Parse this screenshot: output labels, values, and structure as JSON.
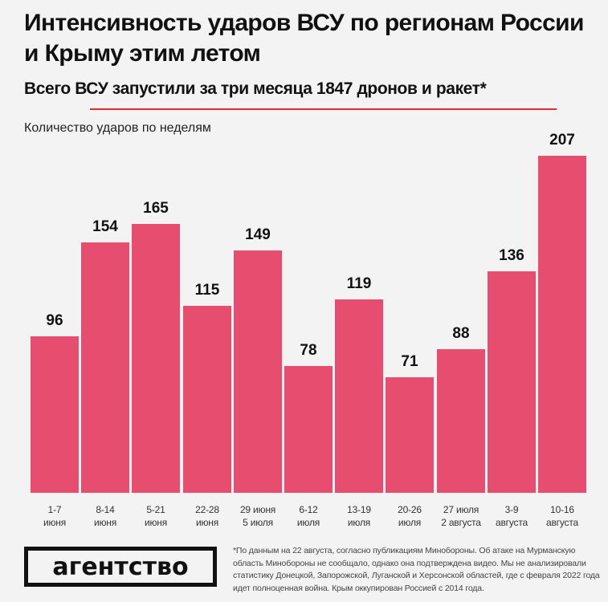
{
  "header": {
    "title": "Интенсивность ударов ВСУ по регионам России и Крыму этим летом",
    "subtitle": "Всего ВСУ запустили за три месяца 1847 дронов и ракет*",
    "accent_color": "#e8262e"
  },
  "chart_data": {
    "type": "bar",
    "title": "Интенсивность ударов ВСУ по регионам России и Крыму этим летом",
    "subtitle": "Всего ВСУ запустили за три месяца 1847 дронов и ракет*",
    "xlabel": "",
    "ylabel": "Количество ударов по неделям",
    "categories": [
      "1-7 июня",
      "8-14 июня",
      "5-21 июня",
      "22-28 июня",
      "29 июня 5 июля",
      "6-12 июля",
      "13-19 июля",
      "20-26 июля",
      "27 июля 2 августа",
      "3-9 августа",
      "10-16 августа"
    ],
    "category_lines": [
      [
        "1-7",
        "июня"
      ],
      [
        "8-14",
        "июня"
      ],
      [
        "5-21",
        "июня"
      ],
      [
        "22-28",
        "июня"
      ],
      [
        "29 июня",
        "5 июля"
      ],
      [
        "6-12",
        "июля"
      ],
      [
        "13-19",
        "июля"
      ],
      [
        "20-26",
        "июля"
      ],
      [
        "27 июля",
        "2 августа"
      ],
      [
        "3-9",
        "августа"
      ],
      [
        "10-16",
        "августа"
      ]
    ],
    "values": [
      96,
      154,
      165,
      115,
      149,
      78,
      119,
      71,
      88,
      136,
      207
    ],
    "value_labels": [
      "96",
      "154",
      "165",
      "115",
      "149",
      "78",
      "119",
      "71",
      "88",
      "136",
      "207"
    ],
    "bar_color": "#e64d6e",
    "grid": false,
    "legend": null,
    "ylim": [
      0,
      207
    ]
  },
  "footer": {
    "logo_text": "агентство",
    "footnote": "*По данным на 22 августа, согласно публикациям Минобороны. Об атаке на Мурманскую область Минобороны не сообщало, однако она подтверждена видео. Мы не анализировали статистику Донецкой, Запорожской, Луганской и Херсонской областей, где с февраля 2022 года идет полноценная война. Крым оккупирован Россией с 2014 года."
  }
}
